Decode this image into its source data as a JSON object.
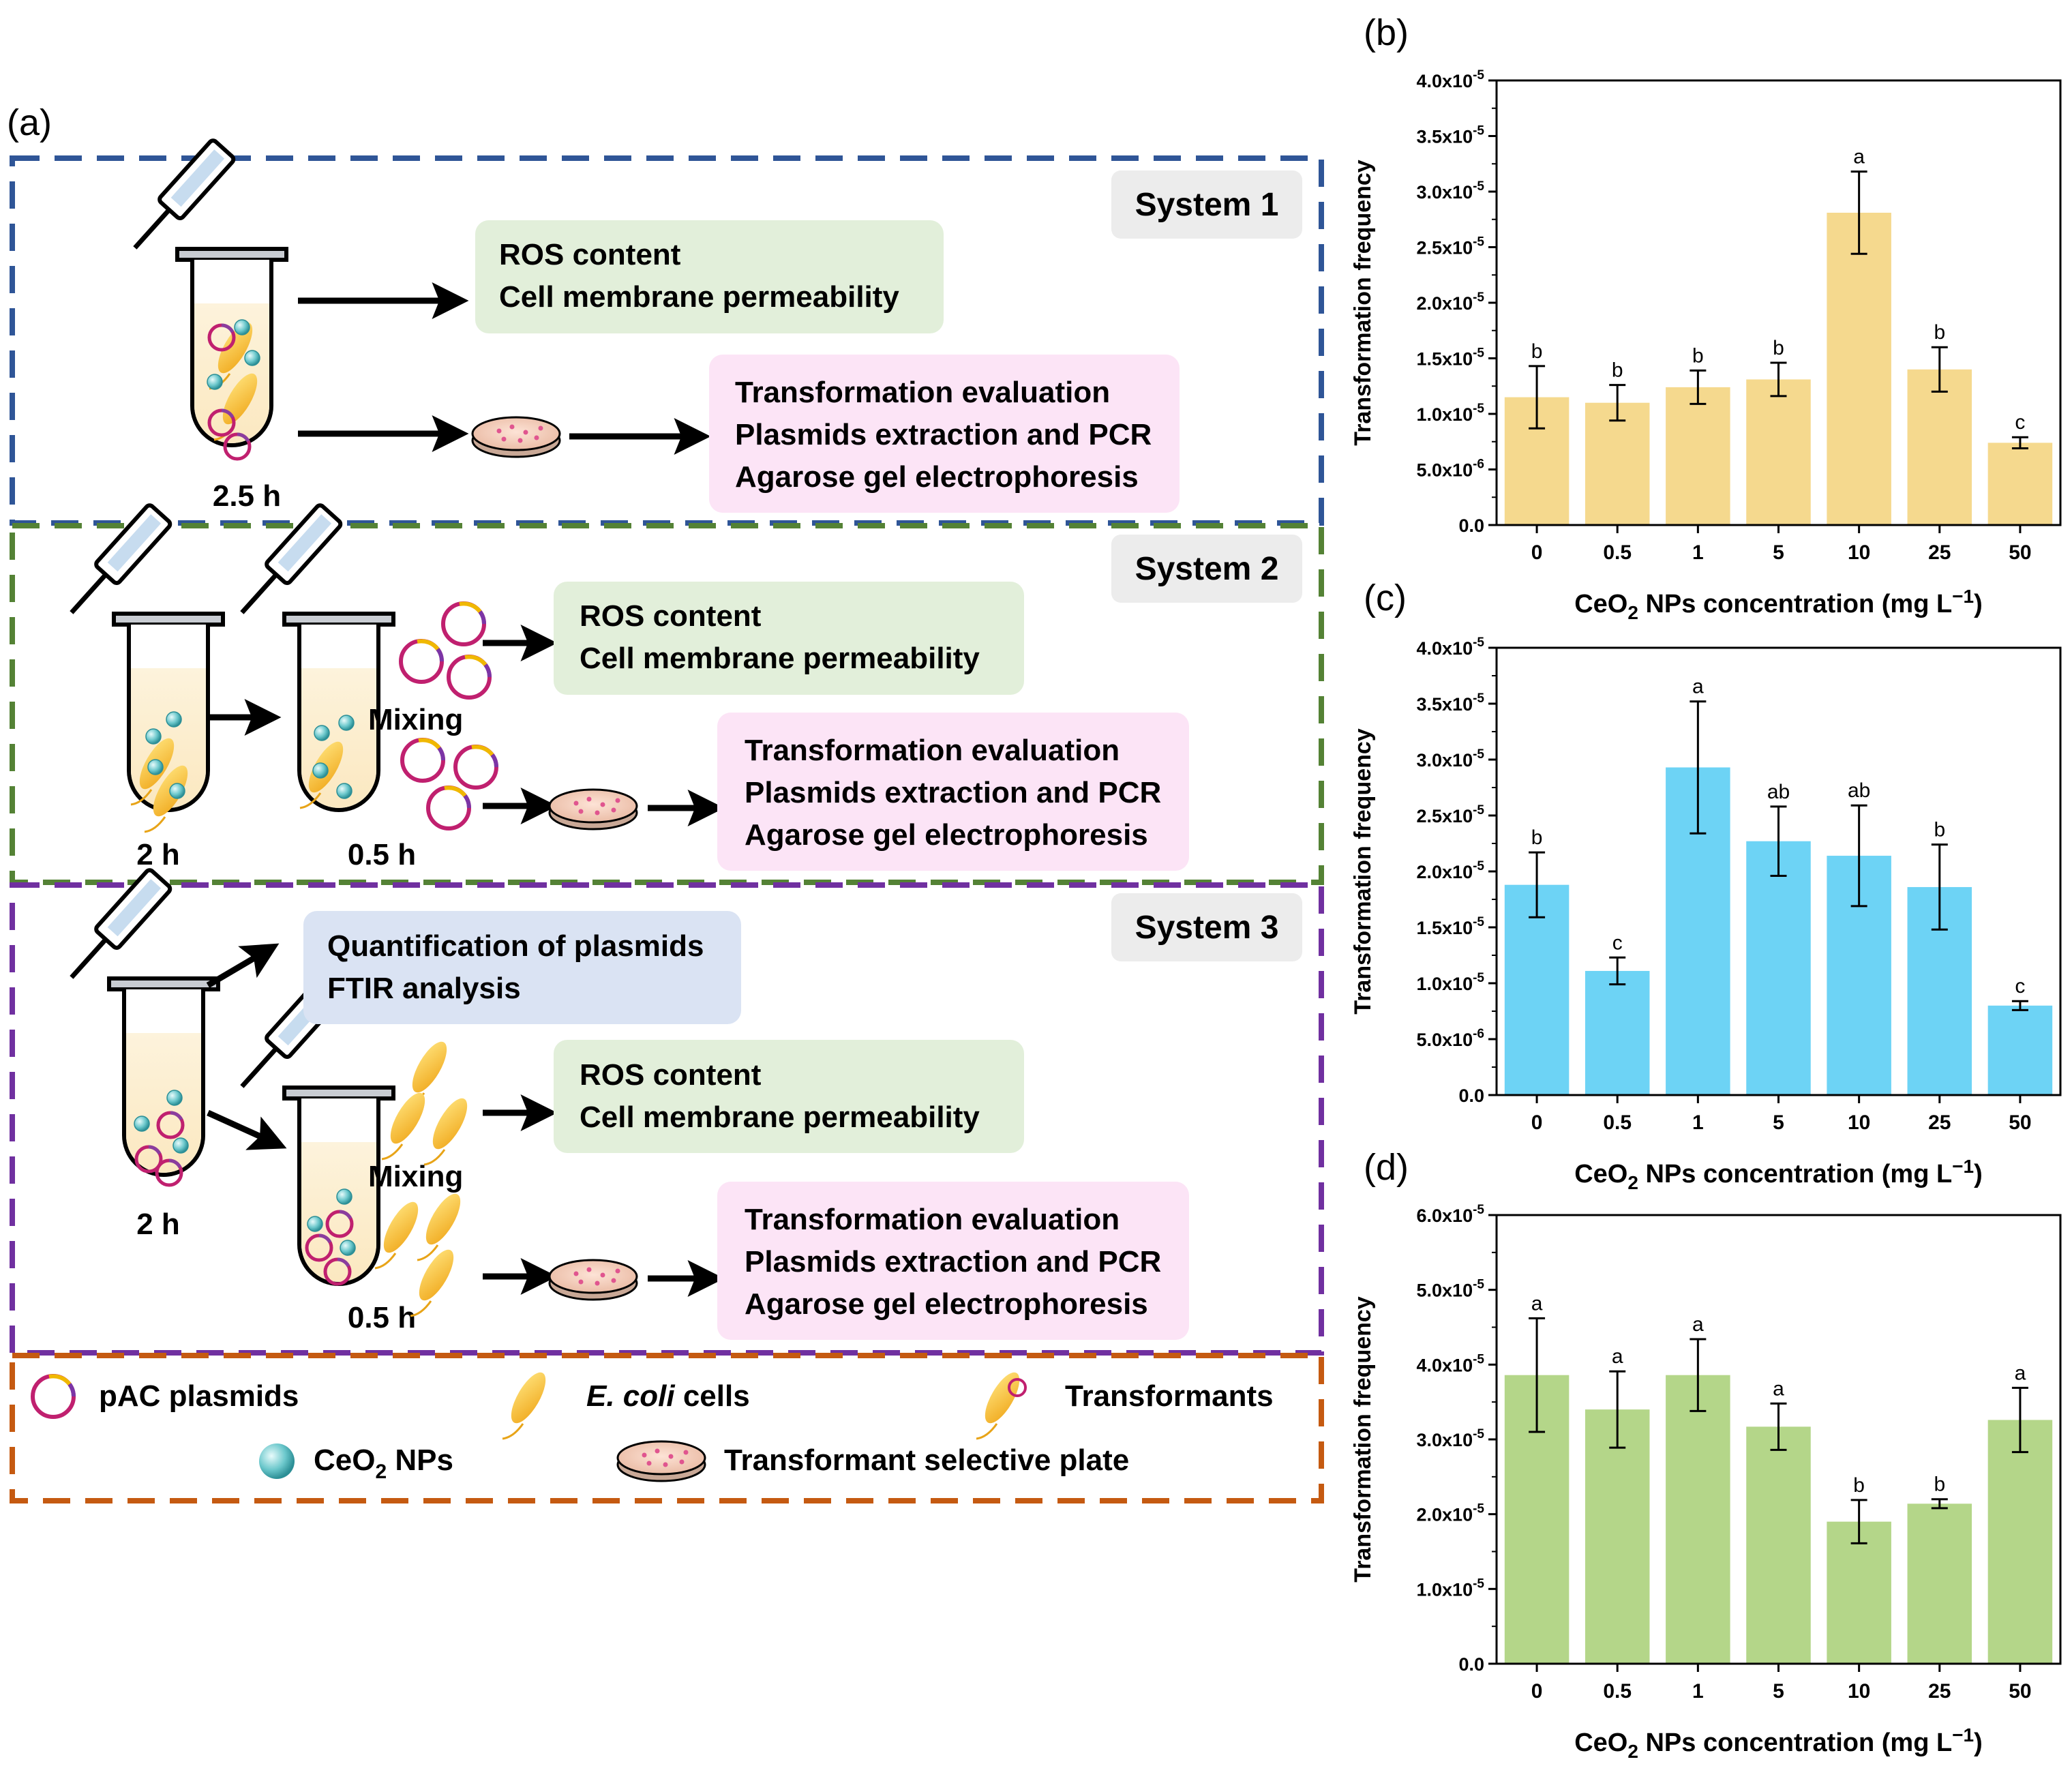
{
  "panel_a": {
    "label": "(a)",
    "colors": {
      "system1": "#2f5597",
      "system2": "#548235",
      "system3": "#7030a0",
      "legend": "#c55a11",
      "green_box": "#e2efda",
      "pink_box": "#fce4f6",
      "blue_box": "#dae3f3",
      "system_tag": "#ececec"
    },
    "system1": {
      "tag": "System 1",
      "time": "2.5 h",
      "box1": [
        "ROS content",
        "Cell membrane permeability"
      ],
      "box2": [
        "Transformation evaluation",
        "Plasmids extraction and PCR",
        "Agarose gel electrophoresis"
      ]
    },
    "system2": {
      "tag": "System 2",
      "time1": "2 h",
      "time2": "0.5 h",
      "mixing": "Mixing",
      "box1": [
        "ROS content",
        "Cell membrane permeability"
      ],
      "box2": [
        "Transformation evaluation",
        "Plasmids extraction and PCR",
        "Agarose gel electrophoresis"
      ]
    },
    "system3": {
      "tag": "System 3",
      "time1": "2 h",
      "time2": "0.5 h",
      "mixing": "Mixing",
      "box0": [
        "Quantification of plasmids",
        "FTIR analysis"
      ],
      "box1": [
        "ROS content",
        "Cell membrane permeability"
      ],
      "box2": [
        "Transformation evaluation",
        "Plasmids extraction and PCR",
        "Agarose gel electrophoresis"
      ]
    },
    "legend": {
      "plasmids": "pAC plasmids",
      "ecoli_italic": "E. coli",
      "ecoli_rest": " cells",
      "transformants": "Transformants",
      "ceo2_main": "CeO",
      "ceo2_sub": "2",
      "ceo2_rest": " NPs",
      "plate": "Transformant selective plate"
    }
  },
  "chart_data": [
    {
      "panel": "(b)",
      "type": "bar",
      "color": "#f5d98e",
      "categories": [
        "0",
        "0.5",
        "1",
        "5",
        "10",
        "25",
        "50"
      ],
      "values": [
        1.15e-05,
        1.1e-05,
        1.24e-05,
        1.31e-05,
        2.81e-05,
        1.4e-05,
        7.4e-06
      ],
      "errors": [
        2.8e-06,
        1.6e-06,
        1.5e-06,
        1.5e-06,
        3.7e-06,
        2e-06,
        5e-07
      ],
      "letters": [
        "b",
        "b",
        "b",
        "b",
        "a",
        "b",
        "c"
      ],
      "ylim": [
        0,
        4e-05
      ],
      "yticks": [
        "0.0",
        "5.0x10-6",
        "1.0x10-5",
        "1.5x10-5",
        "2.0x10-5",
        "2.5x10-5",
        "3.0x10-5",
        "3.5x10-5",
        "4.0x10-5"
      ],
      "ylabel": "Transformation frequency",
      "xlabel": "CeO2 NPs concentration (mg L-1)"
    },
    {
      "panel": "(c)",
      "type": "bar",
      "color": "#6dd3f5",
      "categories": [
        "0",
        "0.5",
        "1",
        "5",
        "10",
        "25",
        "50"
      ],
      "values": [
        1.88e-05,
        1.11e-05,
        2.93e-05,
        2.27e-05,
        2.14e-05,
        1.86e-05,
        8e-06
      ],
      "errors": [
        2.9e-06,
        1.2e-06,
        5.9e-06,
        3.1e-06,
        4.5e-06,
        3.8e-06,
        4e-07
      ],
      "letters": [
        "b",
        "c",
        "a",
        "ab",
        "ab",
        "b",
        "c"
      ],
      "ylim": [
        0,
        4e-05
      ],
      "yticks": [
        "0.0",
        "5.0x10-6",
        "1.0x10-5",
        "1.5x10-5",
        "2.0x10-5",
        "2.5x10-5",
        "3.0x10-5",
        "3.5x10-5",
        "4.0x10-5"
      ],
      "ylabel": "Transformation frequency",
      "xlabel": "CeO2 NPs concentration (mg L-1)"
    },
    {
      "panel": "(d)",
      "type": "bar",
      "color": "#b4d689",
      "categories": [
        "0",
        "0.5",
        "1",
        "5",
        "10",
        "25",
        "50"
      ],
      "values": [
        3.86e-05,
        3.4e-05,
        3.86e-05,
        3.17e-05,
        1.9e-05,
        2.14e-05,
        3.26e-05
      ],
      "errors": [
        7.6e-06,
        5.1e-06,
        4.8e-06,
        3.1e-06,
        2.9e-06,
        6e-07,
        4.3e-06
      ],
      "letters": [
        "a",
        "a",
        "a",
        "a",
        "b",
        "b",
        "a"
      ],
      "ylim": [
        0,
        6e-05
      ],
      "yticks": [
        "0.0",
        "1.0x10-5",
        "2.0x10-5",
        "3.0x10-5",
        "4.0x10-5",
        "5.0x10-5",
        "6.0x10-5"
      ],
      "ylabel": "Transformation frequency",
      "xlabel": "CeO2 NPs concentration (mg L-1)"
    }
  ],
  "chart_text": {
    "xlabel_main": "CeO",
    "xlabel_sub": "2",
    "xlabel_mid": " NPs concentration (mg L",
    "xlabel_sup": "−1",
    "xlabel_end": ")"
  }
}
